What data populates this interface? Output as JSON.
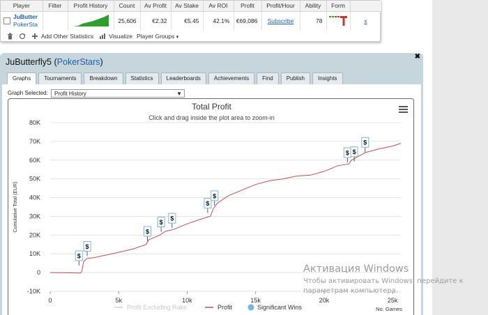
{
  "stats": {
    "headers": [
      "Player",
      "Filter",
      "Profit History",
      "Count",
      "Av Profit",
      "Av Stake",
      "Av ROI",
      "Profit",
      "Profit/Hour",
      "Ability",
      "Form"
    ],
    "row": {
      "player_name": "JuButter",
      "network": "PokerSta",
      "count": "25,606",
      "av_profit": "€2.32",
      "av_stake": "€5.45",
      "av_roi": "42.1%",
      "profit": "€69,086",
      "profit_hour": "Subscribe",
      "ability": "78",
      "remove": "x"
    },
    "toolbar": {
      "add_other": "Add Other Statistics",
      "visualize": "Visualize",
      "player_groups": "Player Groups"
    }
  },
  "panel": {
    "player": "JuButterfly5",
    "network": "PokerStars",
    "tabs": [
      "Graphs",
      "Tournaments",
      "Breakdown",
      "Statistics",
      "Leaderboards",
      "Achievements",
      "Find",
      "Publish",
      "Insights"
    ],
    "graph_selected_label": "Graph Selected:",
    "graph_selected_value": "Profit History"
  },
  "chart_data": {
    "type": "line",
    "title": "Total Profit",
    "subtitle": "Click and drag inside the plot area to zoom-in",
    "xlabel": "No. Games",
    "ylabel": "Cumulative Total (EUR)",
    "xlim": [
      0,
      25606
    ],
    "ylim": [
      -10000,
      80000
    ],
    "x_ticks": [
      "0",
      "5k",
      "10k",
      "15k",
      "20k",
      "25k"
    ],
    "y_ticks": [
      "-10K",
      "0",
      "10K",
      "20K",
      "30K",
      "40K",
      "50K",
      "60K",
      "70K",
      "80K"
    ],
    "series": [
      {
        "name": "Profit",
        "color": "#c0504d",
        "points": [
          [
            0,
            0
          ],
          [
            1000,
            -100
          ],
          [
            1800,
            -200
          ],
          [
            2200,
            -300
          ],
          [
            2300,
            500
          ],
          [
            2450,
            6000
          ],
          [
            2700,
            7500
          ],
          [
            3200,
            8000
          ],
          [
            4500,
            10000
          ],
          [
            6000,
            12500
          ],
          [
            7000,
            15000
          ],
          [
            7200,
            17500
          ],
          [
            8000,
            20000
          ],
          [
            8400,
            22000
          ],
          [
            9000,
            23000
          ],
          [
            10000,
            26000
          ],
          [
            11000,
            28500
          ],
          [
            11700,
            30000
          ],
          [
            11900,
            34000
          ],
          [
            12200,
            37000
          ],
          [
            13000,
            41000
          ],
          [
            14000,
            44000
          ],
          [
            15000,
            47000
          ],
          [
            16000,
            49000
          ],
          [
            17000,
            50000
          ],
          [
            18000,
            51500
          ],
          [
            19000,
            52000
          ],
          [
            20000,
            54000
          ],
          [
            21000,
            57000
          ],
          [
            21800,
            58000
          ],
          [
            22000,
            60000
          ],
          [
            22500,
            62000
          ],
          [
            23000,
            64000
          ],
          [
            24000,
            66000
          ],
          [
            25000,
            67500
          ],
          [
            25600,
            69000
          ]
        ]
      },
      {
        "name": "Profit Excluding Rake",
        "color": "#dddddd",
        "points": []
      }
    ],
    "significant_wins": [
      [
        2100,
        9000
      ],
      [
        2700,
        14000
      ],
      [
        7100,
        22000
      ],
      [
        8100,
        27000
      ],
      [
        8900,
        29000
      ],
      [
        11500,
        37000
      ],
      [
        12000,
        41000
      ],
      [
        21700,
        64000
      ],
      [
        22200,
        64500
      ],
      [
        23000,
        69500
      ]
    ],
    "significant_wins_label": "Significant Wins",
    "marker_symbol": "$",
    "legend_position": "bottom-center",
    "grid": true
  },
  "watermark": {
    "line1": "Активация Windows",
    "line2": "Чтобы активировать Windows, перейдите к",
    "line3": "параметрам компьютера."
  }
}
